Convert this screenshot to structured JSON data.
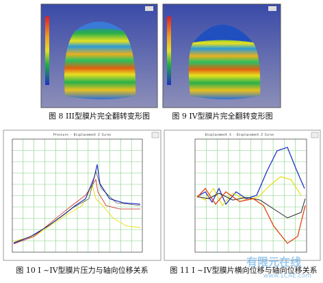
{
  "figures": [
    {
      "caption": "图 8  III型膜片完全翻转变形图"
    },
    {
      "caption": "图 9  IV型膜片完全翻转变形图"
    },
    {
      "caption": "图 10  I ~IV型膜片压力与轴向位移关系",
      "plot_title": "Pressure - Displacement Z Curve"
    },
    {
      "caption": "图 11 I ~IV型膜片横向位移与轴向位移关系",
      "plot_title": "Displacement X - Displacement Z Curve"
    }
  ],
  "watermark": {
    "name": "有限元在线",
    "url": "www.1CAE.com"
  }
}
